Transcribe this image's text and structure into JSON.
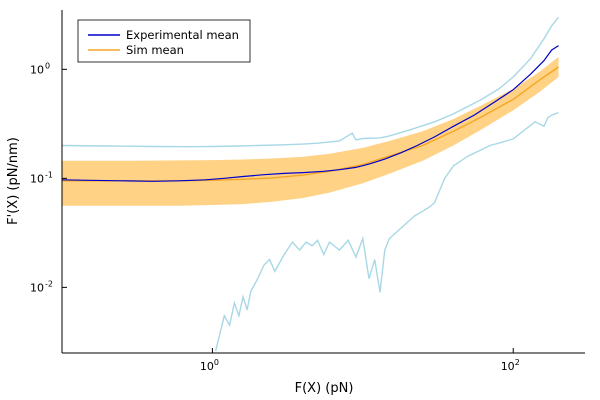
{
  "chart_data": {
    "type": "line",
    "title": "",
    "xlabel": "F(X) (pN)",
    "ylabel": "F'(X) (pN/nm)",
    "xscale": "log10",
    "yscale": "log10",
    "xlim": [
      0.1,
      300
    ],
    "ylim": [
      0.0025,
      3.5
    ],
    "x_ticks": [
      {
        "base": "10",
        "exp": "0"
      },
      {
        "base": "10",
        "exp": "2"
      }
    ],
    "y_ticks": [
      {
        "base": "10",
        "exp": "-2"
      },
      {
        "base": "10",
        "exp": "-1"
      },
      {
        "base": "10",
        "exp": "0"
      }
    ],
    "grid": false,
    "legend_position": "top-left",
    "series": [
      {
        "name": "Experimental mean",
        "role": "line",
        "color": "#0000cc",
        "x": [
          0.1,
          0.15,
          0.25,
          0.4,
          0.6,
          0.9,
          1.2,
          1.6,
          2.2,
          3.0,
          4.0,
          5.5,
          7.0,
          9.0,
          11.0,
          14.0,
          18.0,
          23.0,
          30.0,
          40.0,
          55.0,
          75.0,
          100.0,
          130.0,
          160.0,
          180.0,
          200.0
        ],
        "y": [
          0.097,
          0.096,
          0.095,
          0.094,
          0.095,
          0.097,
          0.1,
          0.104,
          0.108,
          0.111,
          0.113,
          0.116,
          0.12,
          0.126,
          0.135,
          0.15,
          0.172,
          0.2,
          0.24,
          0.3,
          0.38,
          0.5,
          0.65,
          0.9,
          1.2,
          1.5,
          1.65
        ]
      },
      {
        "name": "Sim mean",
        "role": "line",
        "color": "#f5a623",
        "x": [
          0.1,
          0.3,
          0.6,
          1.0,
          1.6,
          2.5,
          4.0,
          6.0,
          10.0,
          15.0,
          25.0,
          40.0,
          60.0,
          100.0,
          150.0,
          200.0
        ],
        "y": [
          0.095,
          0.095,
          0.095,
          0.096,
          0.098,
          0.101,
          0.107,
          0.116,
          0.134,
          0.16,
          0.2,
          0.27,
          0.36,
          0.53,
          0.8,
          1.05
        ]
      },
      {
        "role": "band",
        "color": "#ffd080",
        "x": [
          0.1,
          0.3,
          0.6,
          1.0,
          1.6,
          2.5,
          4.0,
          6.0,
          10.0,
          15.0,
          25.0,
          40.0,
          60.0,
          100.0,
          150.0,
          200.0
        ],
        "lower": [
          0.056,
          0.056,
          0.056,
          0.057,
          0.058,
          0.061,
          0.066,
          0.074,
          0.09,
          0.11,
          0.145,
          0.2,
          0.275,
          0.42,
          0.62,
          0.85
        ],
        "upper": [
          0.145,
          0.145,
          0.146,
          0.147,
          0.149,
          0.152,
          0.158,
          0.168,
          0.19,
          0.22,
          0.27,
          0.35,
          0.46,
          0.66,
          0.95,
          1.3
        ]
      },
      {
        "role": "upper-envelope",
        "color": "#a8d8e6",
        "x": [
          0.1,
          0.2,
          0.4,
          0.7,
          1.0,
          1.5,
          2.0,
          3.0,
          4.0,
          5.0,
          7.0,
          8.5,
          9.0,
          10.0,
          13.0,
          15.0,
          20.0,
          30.0,
          40.0,
          60.0,
          80.0,
          100.0,
          130.0,
          160.0,
          180.0,
          200.0
        ],
        "y": [
          0.2,
          0.198,
          0.196,
          0.195,
          0.196,
          0.198,
          0.2,
          0.203,
          0.206,
          0.21,
          0.22,
          0.26,
          0.225,
          0.232,
          0.235,
          0.245,
          0.275,
          0.33,
          0.39,
          0.52,
          0.66,
          0.85,
          1.25,
          1.9,
          2.5,
          3.0
        ]
      },
      {
        "role": "lower-envelope",
        "color": "#a8d8e6",
        "x": [
          1.05,
          1.2,
          1.3,
          1.4,
          1.5,
          1.6,
          1.7,
          1.8,
          2.0,
          2.2,
          2.4,
          2.6,
          3.0,
          3.4,
          3.8,
          4.2,
          4.6,
          5.0,
          5.5,
          6.0,
          7.0,
          8.0,
          9.0,
          10.0,
          11.0,
          12.0,
          13.0,
          14.0,
          15.0,
          18.0,
          22.0,
          25.0,
          28.0,
          30.0,
          35.0,
          40.0,
          50.0,
          60.0,
          70.0,
          80.0,
          100.0,
          120.0,
          140.0,
          160.0,
          170.0,
          180.0,
          200.0
        ],
        "y": [
          0.0026,
          0.0055,
          0.0045,
          0.0072,
          0.0055,
          0.0082,
          0.0062,
          0.0092,
          0.012,
          0.016,
          0.018,
          0.014,
          0.02,
          0.026,
          0.022,
          0.026,
          0.024,
          0.027,
          0.02,
          0.026,
          0.022,
          0.027,
          0.019,
          0.028,
          0.012,
          0.018,
          0.009,
          0.022,
          0.028,
          0.035,
          0.045,
          0.05,
          0.055,
          0.06,
          0.1,
          0.13,
          0.16,
          0.18,
          0.2,
          0.21,
          0.23,
          0.28,
          0.33,
          0.3,
          0.36,
          0.38,
          0.4
        ]
      }
    ]
  }
}
